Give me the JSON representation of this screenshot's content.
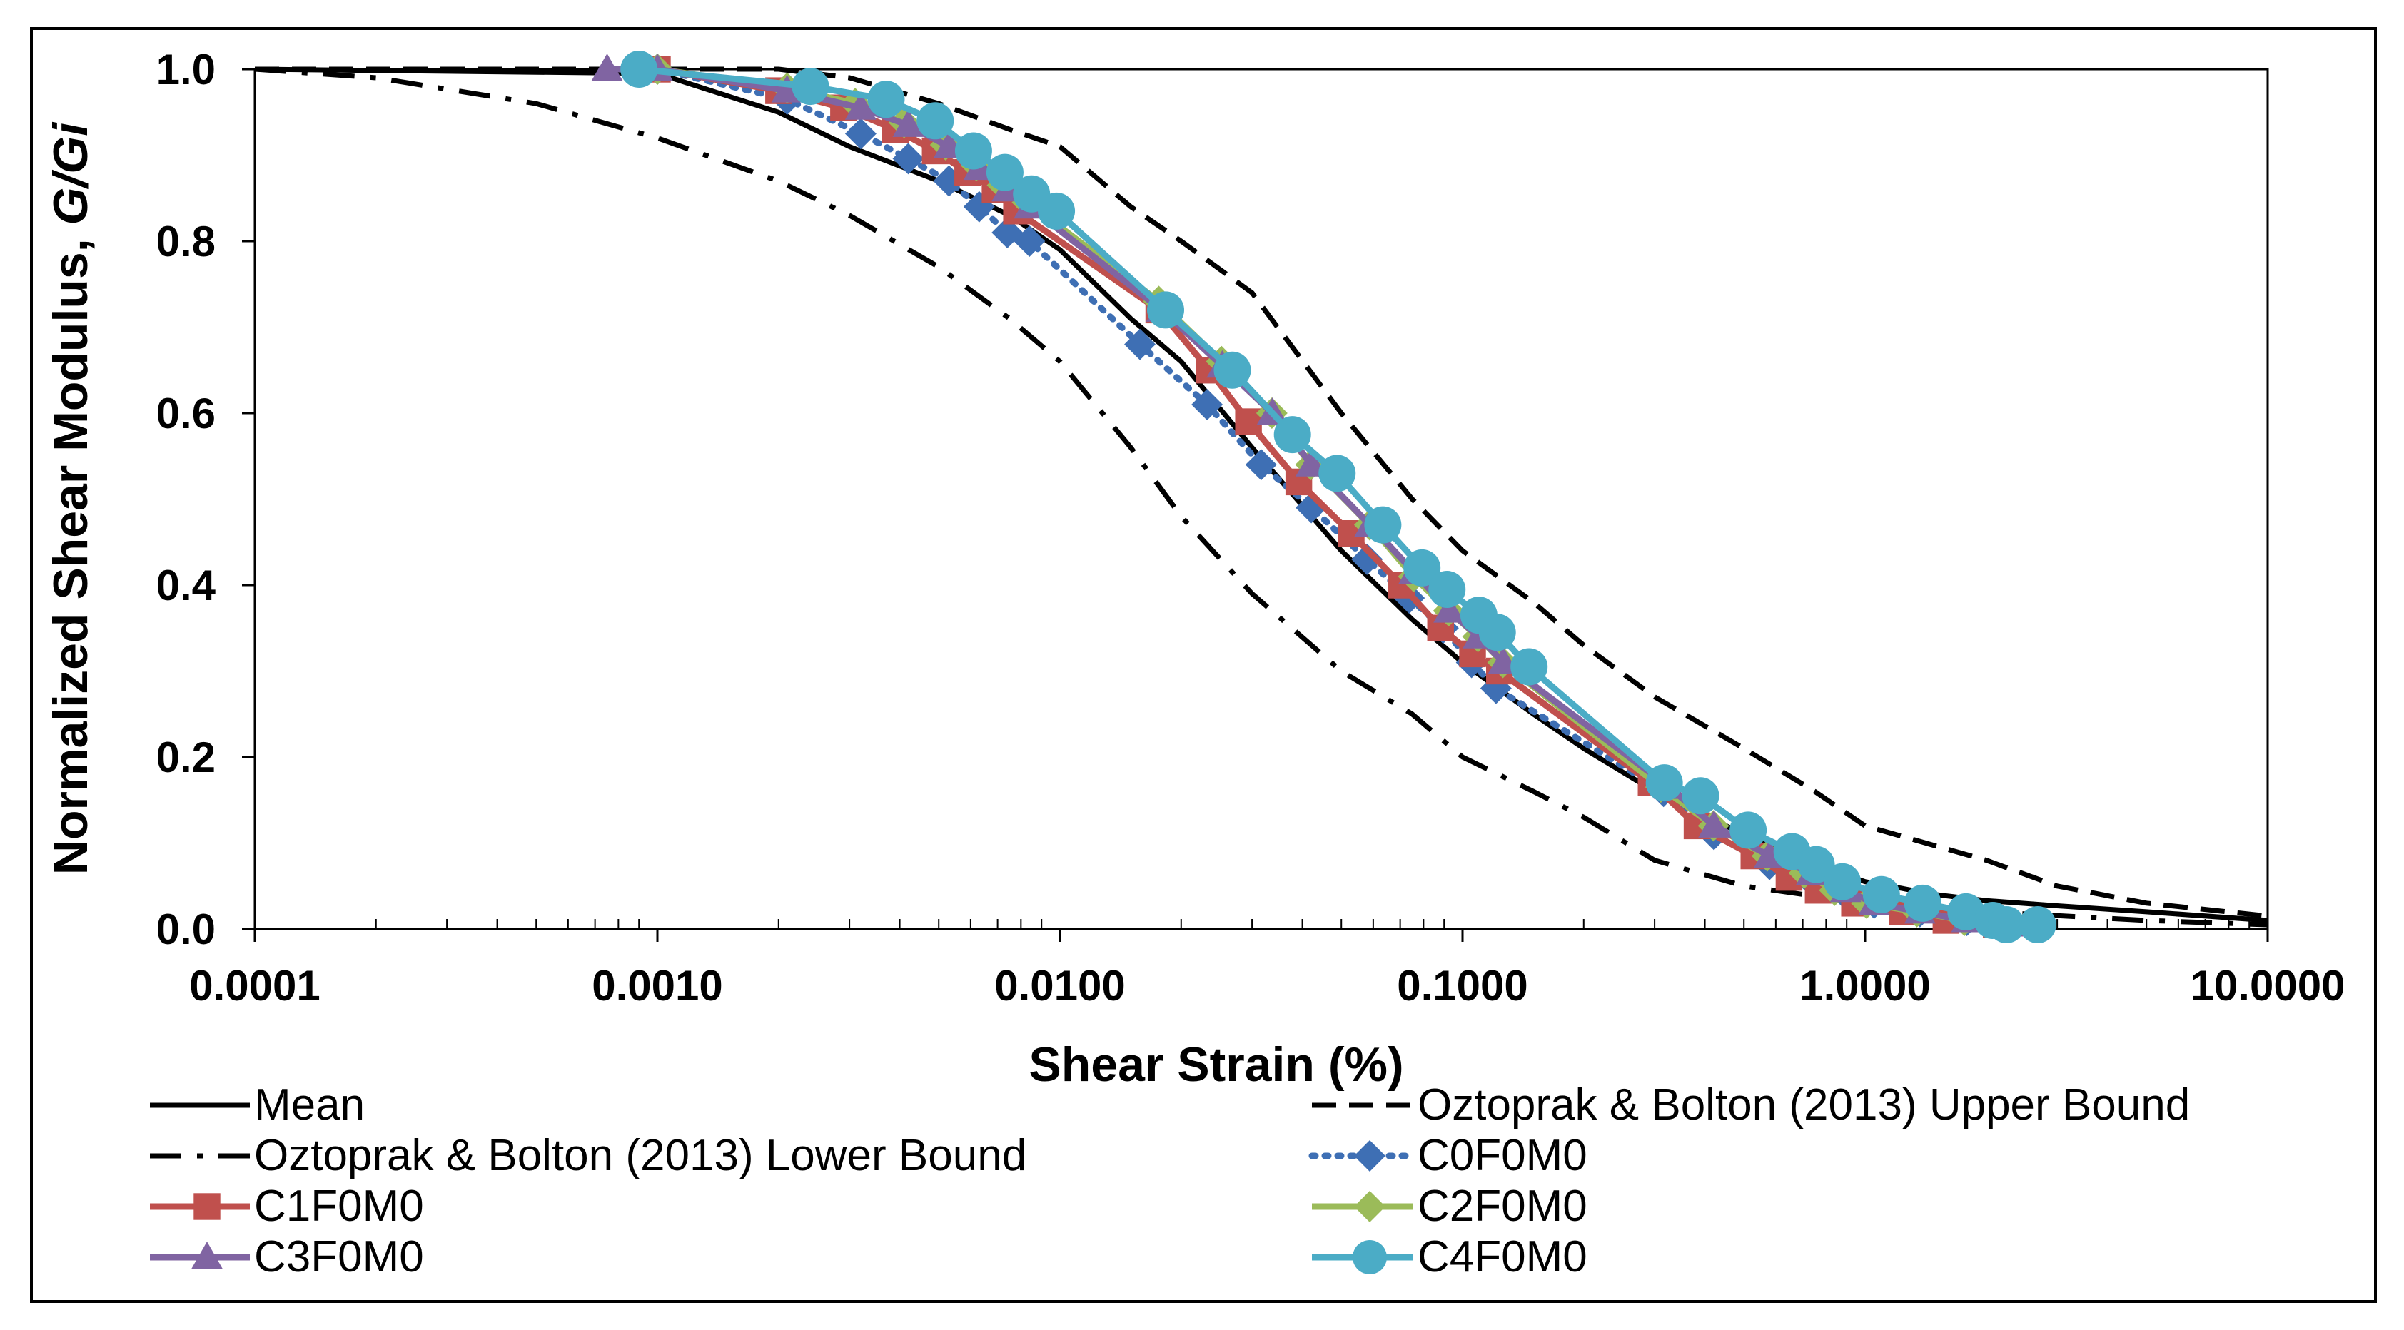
{
  "chart_data": {
    "type": "line",
    "title": "",
    "xlabel": "Shear Strain (%)",
    "ylabel_prefix": "Normalized Shear Modulus, ",
    "ylabel_italic": "G/Gi",
    "x_scale": "log",
    "xlim": [
      0.0001,
      10.0
    ],
    "ylim": [
      0.0,
      1.0
    ],
    "x_ticks": [
      0.0001,
      0.001,
      0.01,
      0.1,
      1.0,
      10.0
    ],
    "x_tick_labels": [
      "0.0001",
      "0.0010",
      "0.0100",
      "0.1000",
      "1.0000",
      "10.0000"
    ],
    "y_ticks": [
      0.0,
      0.2,
      0.4,
      0.6,
      0.8,
      1.0
    ],
    "y_tick_labels": [
      "0.0",
      "0.2",
      "0.4",
      "0.6",
      "0.8",
      "1.0"
    ],
    "grid": false,
    "legend_position": "bottom",
    "series": [
      {
        "name": "Mean",
        "color": "#000000",
        "line": "solid",
        "marker": "none",
        "x": [
          0.0001,
          0.001,
          0.002,
          0.003,
          0.005,
          0.0075,
          0.01,
          0.015,
          0.02,
          0.03,
          0.05,
          0.075,
          0.1,
          0.15,
          0.2,
          0.3,
          0.5,
          0.75,
          1.0,
          1.5,
          2.0,
          3.0,
          5.0,
          10.0
        ],
        "y": [
          1.0,
          0.995,
          0.95,
          0.91,
          0.87,
          0.83,
          0.79,
          0.71,
          0.66,
          0.56,
          0.44,
          0.36,
          0.31,
          0.25,
          0.21,
          0.16,
          0.11,
          0.075,
          0.055,
          0.04,
          0.033,
          0.027,
          0.02,
          0.01
        ]
      },
      {
        "name": "Oztoprak & Bolton (2013) Upper Bound",
        "color": "#000000",
        "line": "dashed",
        "marker": "none",
        "x": [
          0.0001,
          0.001,
          0.002,
          0.003,
          0.005,
          0.0075,
          0.01,
          0.015,
          0.02,
          0.03,
          0.05,
          0.075,
          0.1,
          0.15,
          0.2,
          0.3,
          0.5,
          0.75,
          1.0,
          2.0,
          3.0,
          5.0,
          10.0
        ],
        "y": [
          1.0,
          1.0,
          1.0,
          0.99,
          0.96,
          0.93,
          0.91,
          0.84,
          0.8,
          0.74,
          0.6,
          0.5,
          0.44,
          0.38,
          0.33,
          0.27,
          0.21,
          0.16,
          0.12,
          0.08,
          0.05,
          0.03,
          0.015
        ]
      },
      {
        "name": "Oztoprak & Bolton (2013) Lower Bound",
        "color": "#000000",
        "line": "dashdot",
        "marker": "none",
        "x": [
          0.0001,
          0.0002,
          0.0005,
          0.001,
          0.002,
          0.003,
          0.005,
          0.0075,
          0.01,
          0.015,
          0.02,
          0.03,
          0.05,
          0.075,
          0.1,
          0.15,
          0.2,
          0.3,
          0.5,
          1.0,
          2.0,
          5.0,
          10.0
        ],
        "y": [
          1.0,
          0.99,
          0.96,
          0.92,
          0.87,
          0.83,
          0.77,
          0.71,
          0.66,
          0.56,
          0.48,
          0.39,
          0.3,
          0.25,
          0.2,
          0.16,
          0.13,
          0.08,
          0.05,
          0.03,
          0.02,
          0.01,
          0.005
        ]
      },
      {
        "name": "C0F0M0",
        "color": "#3E6FB4",
        "line": "dotted",
        "marker": "diamond",
        "x": [
          0.001,
          0.0021,
          0.0032,
          0.0042,
          0.0053,
          0.0063,
          0.0074,
          0.0084,
          0.0158,
          0.0232,
          0.0316,
          0.0421,
          0.0579,
          0.0737,
          0.0895,
          0.1053,
          0.1211,
          0.3158,
          0.4211,
          0.5789,
          0.7368,
          0.8947,
          1.0526,
          1.3684,
          1.7895,
          2.2105
        ],
        "y": [
          1.0,
          0.965,
          0.925,
          0.896,
          0.87,
          0.84,
          0.81,
          0.8,
          0.68,
          0.61,
          0.54,
          0.49,
          0.43,
          0.385,
          0.35,
          0.31,
          0.28,
          0.16,
          0.11,
          0.075,
          0.055,
          0.04,
          0.03,
          0.02,
          0.01,
          0.005
        ]
      },
      {
        "name": "C1F0M0",
        "color": "#C0504D",
        "line": "solid",
        "marker": "square",
        "x": [
          0.001,
          0.002,
          0.0029,
          0.0039,
          0.0049,
          0.0059,
          0.0069,
          0.0078,
          0.0176,
          0.0235,
          0.0294,
          0.0392,
          0.0529,
          0.0706,
          0.0882,
          0.1059,
          0.1235,
          0.2941,
          0.3824,
          0.5294,
          0.6471,
          0.7647,
          0.9412,
          1.2353,
          1.5882,
          2.1176
        ],
        "y": [
          1.0,
          0.975,
          0.955,
          0.93,
          0.905,
          0.88,
          0.86,
          0.835,
          0.72,
          0.65,
          0.59,
          0.52,
          0.46,
          0.4,
          0.35,
          0.32,
          0.3,
          0.17,
          0.12,
          0.085,
          0.06,
          0.045,
          0.03,
          0.02,
          0.01,
          0.005
        ]
      },
      {
        "name": "C2F0M0",
        "color": "#9BBB59",
        "line": "solid",
        "marker": "diamond",
        "x": [
          0.001,
          0.0021,
          0.0031,
          0.0041,
          0.0052,
          0.0062,
          0.0072,
          0.0083,
          0.0176,
          0.0252,
          0.0336,
          0.042,
          0.0588,
          0.0756,
          0.0924,
          0.1092,
          0.126,
          0.3109,
          0.4202,
          0.5714,
          0.7059,
          0.8403,
          1.0084,
          1.3445,
          1.7647,
          2.3529
        ],
        "y": [
          1.0,
          0.978,
          0.96,
          0.938,
          0.912,
          0.888,
          0.865,
          0.845,
          0.73,
          0.66,
          0.6,
          0.54,
          0.47,
          0.41,
          0.37,
          0.34,
          0.31,
          0.165,
          0.12,
          0.085,
          0.065,
          0.045,
          0.03,
          0.02,
          0.01,
          0.005
        ]
      },
      {
        "name": "C3F0M0",
        "color": "#8064A2",
        "line": "solid",
        "marker": "triangle",
        "x": [
          0.00075,
          0.001,
          0.0021,
          0.0032,
          0.0042,
          0.0053,
          0.0063,
          0.0074,
          0.0084,
          0.0179,
          0.0253,
          0.0337,
          0.0421,
          0.0589,
          0.0758,
          0.0926,
          0.1095,
          0.1263,
          0.3263,
          0.4211,
          0.5789,
          0.7368,
          0.8947,
          1.0526,
          1.3684,
          1.7895,
          2.3158
        ],
        "y": [
          1.0,
          1.0,
          0.975,
          0.955,
          0.935,
          0.91,
          0.885,
          0.86,
          0.84,
          0.72,
          0.655,
          0.6,
          0.54,
          0.47,
          0.415,
          0.37,
          0.34,
          0.31,
          0.165,
          0.12,
          0.085,
          0.065,
          0.045,
          0.03,
          0.02,
          0.01,
          0.005
        ]
      },
      {
        "name": "C4F0M0",
        "color": "#4BACC6",
        "line": "solid",
        "marker": "circle",
        "x": [
          0.0009,
          0.0024,
          0.0037,
          0.0049,
          0.0061,
          0.0073,
          0.0085,
          0.0098,
          0.0183,
          0.0268,
          0.0378,
          0.0488,
          0.0634,
          0.0793,
          0.0915,
          0.1098,
          0.122,
          0.1463,
          0.3171,
          0.3902,
          0.5122,
          0.6585,
          0.7561,
          0.878,
          1.0976,
          1.3902,
          1.7805,
          2.0732,
          2.2439,
          2.6829
        ],
        "y": [
          1.0,
          0.98,
          0.965,
          0.94,
          0.905,
          0.88,
          0.855,
          0.835,
          0.72,
          0.65,
          0.575,
          0.53,
          0.47,
          0.42,
          0.395,
          0.365,
          0.345,
          0.305,
          0.17,
          0.155,
          0.115,
          0.09,
          0.075,
          0.055,
          0.04,
          0.03,
          0.02,
          0.01,
          0.005,
          0.005
        ]
      }
    ]
  }
}
